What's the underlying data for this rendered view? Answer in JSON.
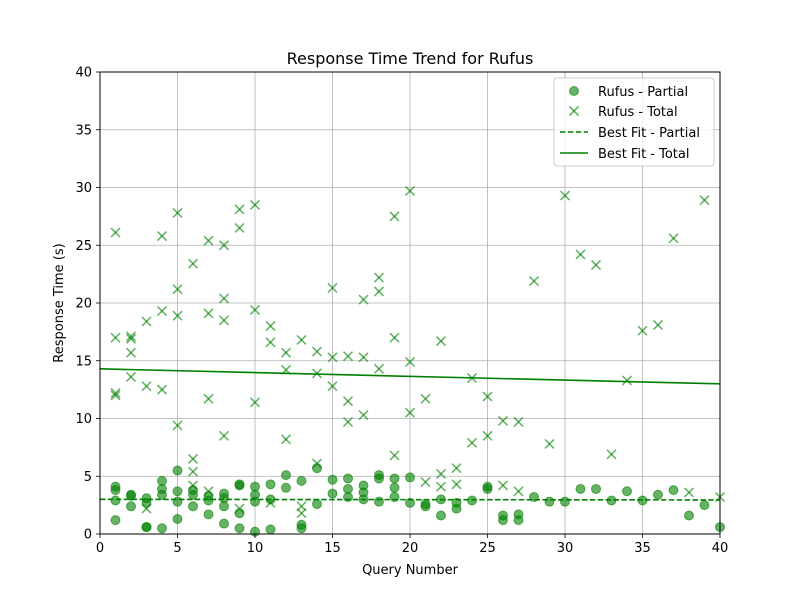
{
  "chart_data": {
    "type": "scatter",
    "title": "Response Time Trend for Rufus",
    "xlabel": "Query Number",
    "ylabel": "Response Time (s)",
    "xlim": [
      0,
      40
    ],
    "ylim": [
      0,
      40
    ],
    "xticks": [
      0,
      5,
      10,
      15,
      20,
      25,
      30,
      35,
      40
    ],
    "yticks": [
      0,
      5,
      10,
      15,
      20,
      25,
      30,
      35,
      40
    ],
    "grid": true,
    "legend_position": "top-right",
    "color": "#008000",
    "series": [
      {
        "name": "Rufus - Partial",
        "marker": "circle",
        "points": [
          [
            1,
            4.1
          ],
          [
            1,
            3.8
          ],
          [
            1,
            2.9
          ],
          [
            1,
            1.2
          ],
          [
            2,
            3.4
          ],
          [
            2,
            3.3
          ],
          [
            2,
            2.4
          ],
          [
            3,
            3.1
          ],
          [
            3,
            2.7
          ],
          [
            3,
            0.6
          ],
          [
            3,
            0.6
          ],
          [
            4,
            4.6
          ],
          [
            4,
            3.9
          ],
          [
            4,
            3.4
          ],
          [
            4,
            0.5
          ],
          [
            5,
            5.5
          ],
          [
            5,
            3.7
          ],
          [
            5,
            2.8
          ],
          [
            5,
            1.3
          ],
          [
            6,
            3.8
          ],
          [
            6,
            3.4
          ],
          [
            6,
            2.4
          ],
          [
            7,
            3.3
          ],
          [
            7,
            2.9
          ],
          [
            7,
            1.7
          ],
          [
            8,
            3.5
          ],
          [
            8,
            3.1
          ],
          [
            8,
            2.4
          ],
          [
            8,
            0.9
          ],
          [
            9,
            4.3
          ],
          [
            9,
            4.2
          ],
          [
            9,
            1.8
          ],
          [
            9,
            0.5
          ],
          [
            10,
            4.1
          ],
          [
            10,
            3.4
          ],
          [
            10,
            2.8
          ],
          [
            10,
            0.2
          ],
          [
            11,
            4.3
          ],
          [
            11,
            3.0
          ],
          [
            11,
            0.4
          ],
          [
            12,
            5.1
          ],
          [
            12,
            4.0
          ],
          [
            13,
            4.6
          ],
          [
            13,
            0.8
          ],
          [
            13,
            0.5
          ],
          [
            14,
            5.7
          ],
          [
            14,
            2.6
          ],
          [
            15,
            4.7
          ],
          [
            15,
            3.5
          ],
          [
            16,
            4.8
          ],
          [
            16,
            3.9
          ],
          [
            16,
            3.2
          ],
          [
            17,
            4.2
          ],
          [
            17,
            3.6
          ],
          [
            17,
            3.0
          ],
          [
            18,
            5.1
          ],
          [
            18,
            4.8
          ],
          [
            18,
            2.8
          ],
          [
            19,
            4.8
          ],
          [
            19,
            4.0
          ],
          [
            19,
            3.2
          ],
          [
            20,
            4.9
          ],
          [
            20,
            2.7
          ],
          [
            21,
            2.6
          ],
          [
            21,
            2.4
          ],
          [
            22,
            3.0
          ],
          [
            22,
            1.6
          ],
          [
            23,
            2.7
          ],
          [
            23,
            2.2
          ],
          [
            24,
            2.9
          ],
          [
            25,
            4.1
          ],
          [
            25,
            3.9
          ],
          [
            26,
            1.6
          ],
          [
            26,
            1.2
          ],
          [
            27,
            1.7
          ],
          [
            27,
            1.2
          ],
          [
            28,
            3.2
          ],
          [
            29,
            2.8
          ],
          [
            30,
            2.8
          ],
          [
            31,
            3.9
          ],
          [
            32,
            3.9
          ],
          [
            33,
            2.9
          ],
          [
            34,
            3.7
          ],
          [
            35,
            2.9
          ],
          [
            36,
            3.4
          ],
          [
            37,
            3.8
          ],
          [
            38,
            1.6
          ],
          [
            39,
            2.5
          ],
          [
            40,
            0.6
          ]
        ]
      },
      {
        "name": "Rufus - Total",
        "marker": "x",
        "points": [
          [
            1,
            26.1
          ],
          [
            1,
            17.0
          ],
          [
            1,
            12.2
          ],
          [
            1,
            12.0
          ],
          [
            2,
            17.1
          ],
          [
            2,
            16.9
          ],
          [
            2,
            15.7
          ],
          [
            2,
            13.6
          ],
          [
            3,
            18.4
          ],
          [
            3,
            12.8
          ],
          [
            3,
            2.2
          ],
          [
            4,
            25.8
          ],
          [
            4,
            19.3
          ],
          [
            4,
            12.5
          ],
          [
            5,
            27.8
          ],
          [
            5,
            21.2
          ],
          [
            5,
            18.9
          ],
          [
            5,
            9.4
          ],
          [
            6,
            23.4
          ],
          [
            6,
            6.5
          ],
          [
            6,
            5.4
          ],
          [
            6,
            4.2
          ],
          [
            7,
            25.4
          ],
          [
            7,
            19.1
          ],
          [
            7,
            11.7
          ],
          [
            7,
            3.7
          ],
          [
            8,
            25.0
          ],
          [
            8,
            20.4
          ],
          [
            8,
            18.5
          ],
          [
            8,
            8.5
          ],
          [
            9,
            28.1
          ],
          [
            9,
            26.5
          ],
          [
            9,
            2.2
          ],
          [
            10,
            28.5
          ],
          [
            10,
            19.4
          ],
          [
            10,
            11.4
          ],
          [
            11,
            18.0
          ],
          [
            11,
            16.6
          ],
          [
            11,
            2.7
          ],
          [
            12,
            15.7
          ],
          [
            12,
            14.2
          ],
          [
            12,
            8.2
          ],
          [
            13,
            16.8
          ],
          [
            13,
            2.4
          ],
          [
            13,
            1.8
          ],
          [
            14,
            15.8
          ],
          [
            14,
            13.9
          ],
          [
            14,
            6.1
          ],
          [
            15,
            21.3
          ],
          [
            15,
            15.3
          ],
          [
            15,
            12.8
          ],
          [
            16,
            15.4
          ],
          [
            16,
            11.5
          ],
          [
            16,
            9.7
          ],
          [
            17,
            20.3
          ],
          [
            17,
            15.3
          ],
          [
            17,
            10.3
          ],
          [
            18,
            22.2
          ],
          [
            18,
            21.0
          ],
          [
            18,
            14.3
          ],
          [
            19,
            27.5
          ],
          [
            19,
            17.0
          ],
          [
            19,
            6.8
          ],
          [
            20,
            29.7
          ],
          [
            20,
            14.9
          ],
          [
            20,
            10.5
          ],
          [
            21,
            11.7
          ],
          [
            21,
            4.5
          ],
          [
            22,
            16.7
          ],
          [
            22,
            5.2
          ],
          [
            22,
            4.1
          ],
          [
            23,
            5.7
          ],
          [
            23,
            4.3
          ],
          [
            24,
            13.5
          ],
          [
            24,
            7.9
          ],
          [
            25,
            11.9
          ],
          [
            25,
            8.5
          ],
          [
            26,
            9.8
          ],
          [
            26,
            4.2
          ],
          [
            27,
            9.7
          ],
          [
            27,
            3.7
          ],
          [
            28,
            21.9
          ],
          [
            29,
            7.8
          ],
          [
            30,
            29.3
          ],
          [
            31,
            24.2
          ],
          [
            32,
            23.3
          ],
          [
            33,
            6.9
          ],
          [
            34,
            13.3
          ],
          [
            35,
            17.6
          ],
          [
            36,
            18.1
          ],
          [
            37,
            25.6
          ],
          [
            38,
            3.6
          ],
          [
            39,
            28.9
          ],
          [
            40,
            3.2
          ]
        ]
      },
      {
        "name": "Best Fit - Partial",
        "line": "dashed",
        "points": [
          [
            0,
            3.0
          ],
          [
            40,
            2.95
          ]
        ]
      },
      {
        "name": "Best Fit - Total",
        "line": "solid",
        "points": [
          [
            0,
            14.3
          ],
          [
            40,
            13.0
          ]
        ]
      }
    ]
  }
}
